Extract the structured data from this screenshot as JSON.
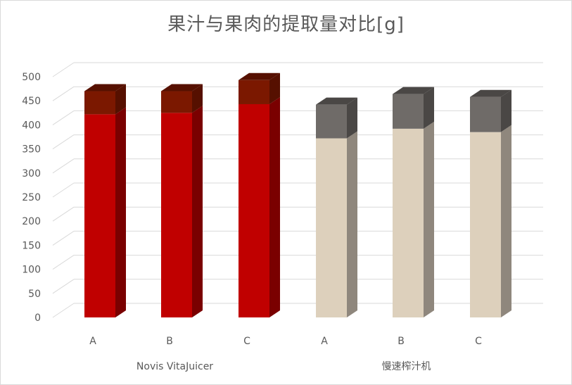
{
  "chart_data": {
    "type": "bar",
    "title": "果汁与果肉的提取量对比[g]",
    "stacked": true,
    "three_d": true,
    "ylim": [
      0,
      500
    ],
    "ytick_step": 50,
    "yticks": [
      "0",
      "50",
      "100",
      "150",
      "200",
      "250",
      "300",
      "350",
      "400",
      "450",
      "500"
    ],
    "grid": true,
    "groups": [
      {
        "name": "Novis VitaJuicer",
        "categories": [
          "A",
          "B",
          "C"
        ],
        "values_bottom": [
          422,
          425,
          443
        ],
        "values_top": [
          48,
          45,
          50
        ],
        "color_bottom": "#c00000",
        "color_bottom_side": "#7a0000",
        "color_top": "#7b1800",
        "color_top_side": "#561000"
      },
      {
        "name": "慢速榨汁机",
        "categories": [
          "A",
          "B",
          "C"
        ],
        "values_bottom": [
          372,
          392,
          385
        ],
        "values_top": [
          70,
          72,
          73
        ],
        "color_bottom": "#ddd0bc",
        "color_bottom_side": "#8f877d",
        "color_top": "#6f6b68",
        "color_top_side": "#4a4745"
      }
    ],
    "grid_color": "#d9d9d9",
    "text_color": "#595959"
  }
}
